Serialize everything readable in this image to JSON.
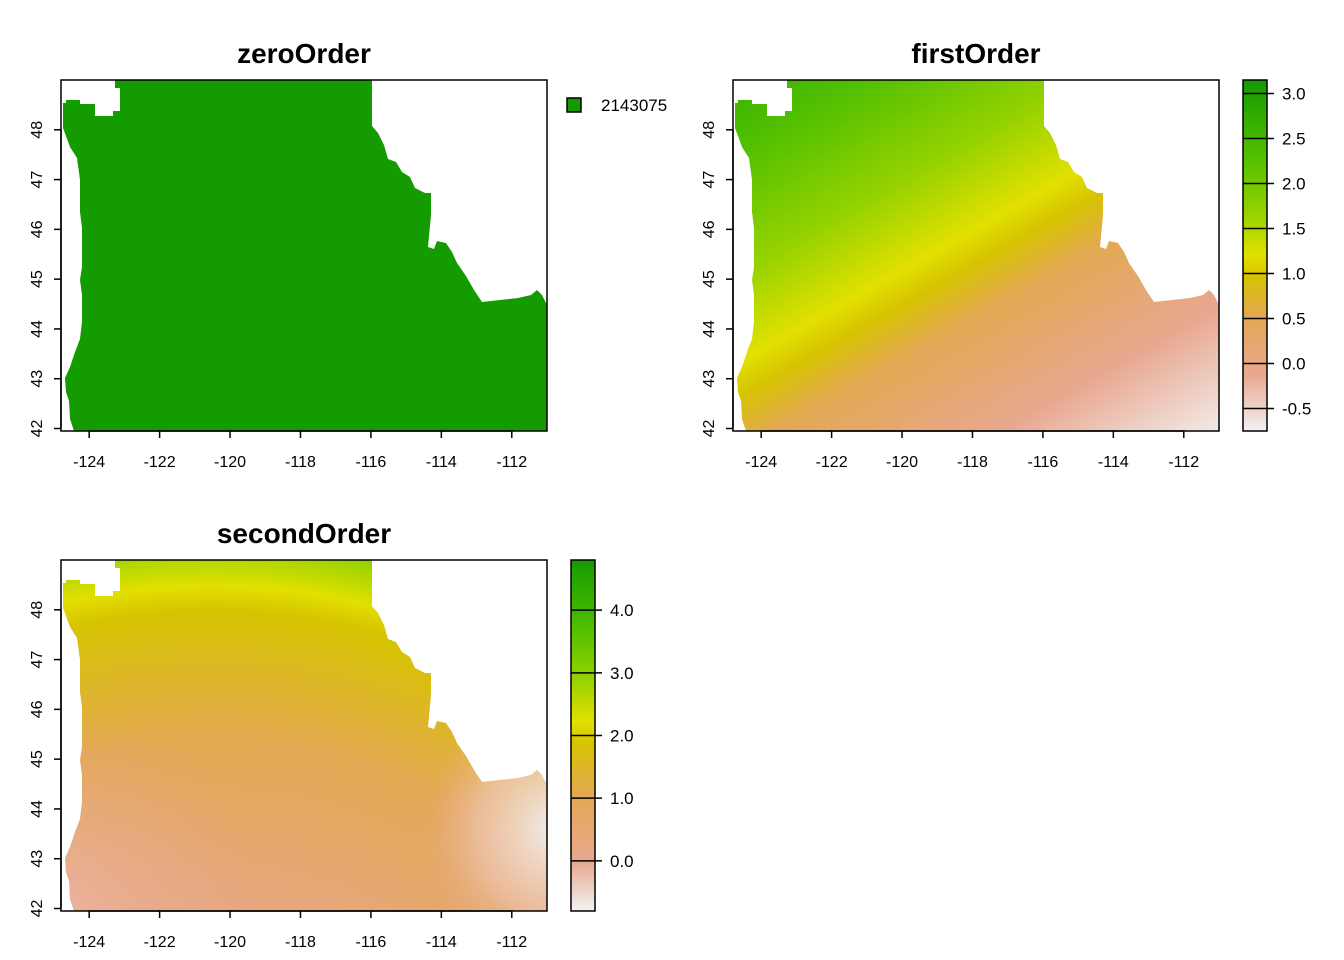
{
  "chart_data": [
    {
      "type": "heatmap",
      "name": "zero",
      "title": "zeroOrder",
      "xticks": [
        -124,
        -122,
        -120,
        -118,
        -116,
        -114,
        -112
      ],
      "yticks": [
        42,
        43,
        44,
        45,
        46,
        47,
        48
      ],
      "xlim": [
        -124.8,
        -111.0
      ],
      "ylim": [
        41.95,
        49.0
      ],
      "legend": {
        "kind": "categorical",
        "entries": [
          {
            "label": "2143075",
            "color": "#149b00"
          }
        ]
      }
    },
    {
      "type": "heatmap",
      "name": "first",
      "title": "firstOrder",
      "xticks": [
        -124,
        -122,
        -120,
        -118,
        -116,
        -114,
        -112
      ],
      "yticks": [
        42,
        43,
        44,
        45,
        46,
        47,
        48
      ],
      "xlim": [
        -124.8,
        -111.0
      ],
      "ylim": [
        41.95,
        49.0
      ],
      "color_range": [
        -0.75,
        3.15
      ],
      "legend": {
        "kind": "continuous",
        "ticks": [
          3.0,
          2.5,
          2.0,
          1.5,
          1.0,
          0.5,
          0.0,
          -0.5
        ],
        "tick_labels": [
          "3.0",
          "2.5",
          "2.0",
          "1.5",
          "1.0",
          "0.5",
          "0.0",
          "-0.5"
        ]
      }
    },
    {
      "type": "heatmap",
      "name": "second",
      "title": "secondOrder",
      "xticks": [
        -124,
        -122,
        -120,
        -118,
        -116,
        -114,
        -112
      ],
      "yticks": [
        42,
        43,
        44,
        45,
        46,
        47,
        48
      ],
      "xlim": [
        -124.8,
        -111.0
      ],
      "ylim": [
        41.95,
        49.0
      ],
      "color_range": [
        -0.8,
        4.8
      ],
      "legend": {
        "kind": "continuous",
        "ticks": [
          4.0,
          3.0,
          2.0,
          1.0,
          0.0
        ],
        "tick_labels": [
          "4.0",
          "3.0",
          "2.0",
          "1.0",
          "0.0"
        ]
      }
    }
  ],
  "colors": {
    "palette": [
      "#f2f2f2",
      "#e8a890",
      "#e3a852",
      "#d6c400",
      "#e2e000",
      "#96d200",
      "#52c000",
      "#149b00"
    ]
  }
}
